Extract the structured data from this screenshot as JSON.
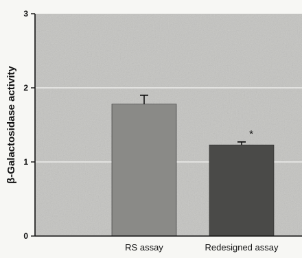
{
  "chart_data": {
    "type": "bar",
    "title": "",
    "xlabel": "",
    "ylabel": "β-Galactosidase activity",
    "categories": [
      "RS assay",
      "Redesigned assay"
    ],
    "values": [
      1.78,
      1.23
    ],
    "error_upper": [
      1.9,
      1.27
    ],
    "annotations": [
      "",
      "*"
    ],
    "ylim": [
      0,
      3
    ],
    "yticks": [
      "0",
      "1",
      "2",
      "3"
    ],
    "grid": true,
    "colors": {
      "plot_background": "#c4c4c1",
      "bar_fills": [
        "#8a8a87",
        "#4a4a48"
      ],
      "gridline": "#ececea",
      "axis": "#111111"
    }
  }
}
